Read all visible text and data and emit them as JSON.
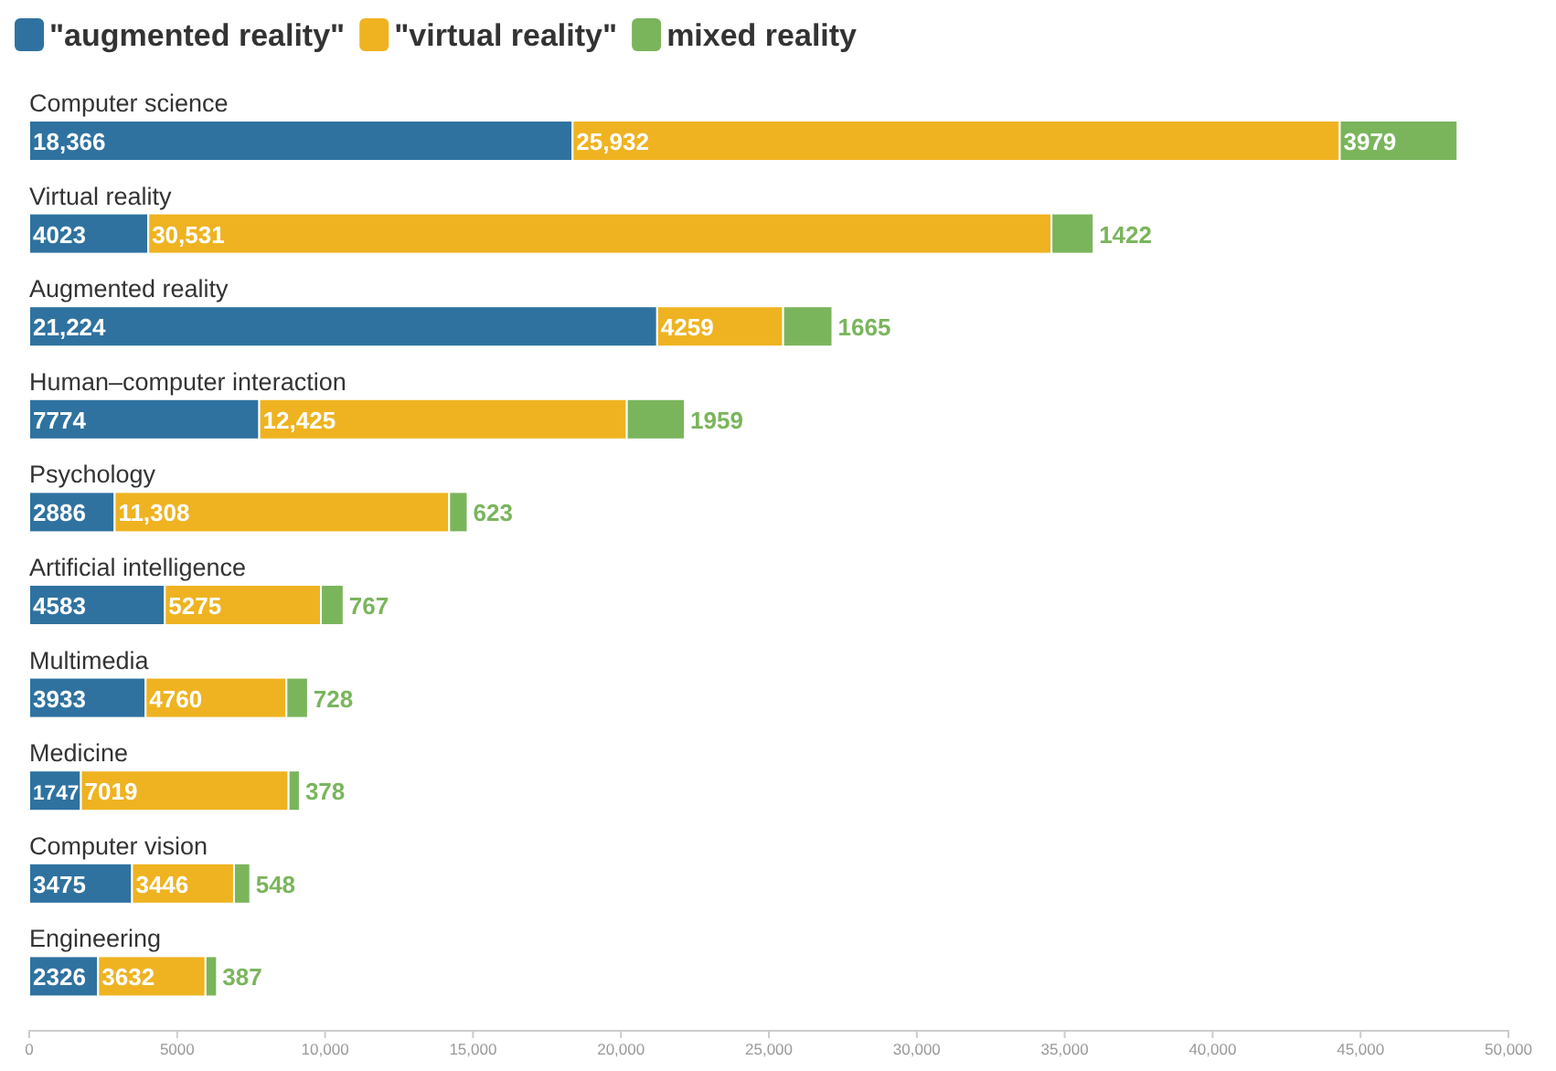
{
  "chart_data": {
    "type": "bar",
    "orientation": "horizontal",
    "stacked": true,
    "legend": "top left",
    "grid": false,
    "categories": [
      "Computer science",
      "Virtual reality",
      "Augmented reality",
      "Human–computer interaction",
      "Psychology",
      "Artificial intelligence",
      "Multimedia",
      "Medicine",
      "Computer vision",
      "Engineering"
    ],
    "series": [
      {
        "name": "\"augmented reality\"",
        "color": "#2f72a0",
        "values": [
          18366,
          4023,
          21224,
          7774,
          2886,
          4583,
          3933,
          1747,
          3475,
          2326
        ],
        "value_labels": [
          "18,366",
          "4023",
          "21,224",
          "7774",
          "2886",
          "4583",
          "3933",
          "1747",
          "3475",
          "2326"
        ]
      },
      {
        "name": "\"virtual reality\"",
        "color": "#efb321",
        "values": [
          25932,
          30531,
          4259,
          12425,
          11308,
          5275,
          4760,
          7019,
          3446,
          3632
        ],
        "value_labels": [
          "25,932",
          "30,531",
          "4259",
          "12,425",
          "11,308",
          "5275",
          "4760",
          "7019",
          "3446",
          "3632"
        ]
      },
      {
        "name": "mixed reality",
        "color": "#7ab55c",
        "values": [
          3979,
          1422,
          1665,
          1959,
          623,
          767,
          728,
          378,
          548,
          387
        ],
        "value_labels": [
          "3979",
          "1422",
          "1665",
          "1959",
          "623",
          "767",
          "728",
          "378",
          "548",
          "387"
        ]
      }
    ],
    "xlim": [
      0,
      50000
    ],
    "xticks": [
      0,
      5000,
      {
        "value": 10000,
        "label": "10,000"
      },
      {
        "value": 15000,
        "label": "15,000"
      },
      {
        "value": 20000,
        "label": "20,000"
      },
      {
        "value": 25000,
        "label": "25,000"
      },
      {
        "value": 30000,
        "label": "30,000"
      },
      {
        "value": 35000,
        "label": "35,000"
      },
      {
        "value": 40000,
        "label": "40,000"
      },
      {
        "value": 45000,
        "label": "45,000"
      },
      {
        "value": 50000,
        "label": "50,000"
      }
    ]
  }
}
